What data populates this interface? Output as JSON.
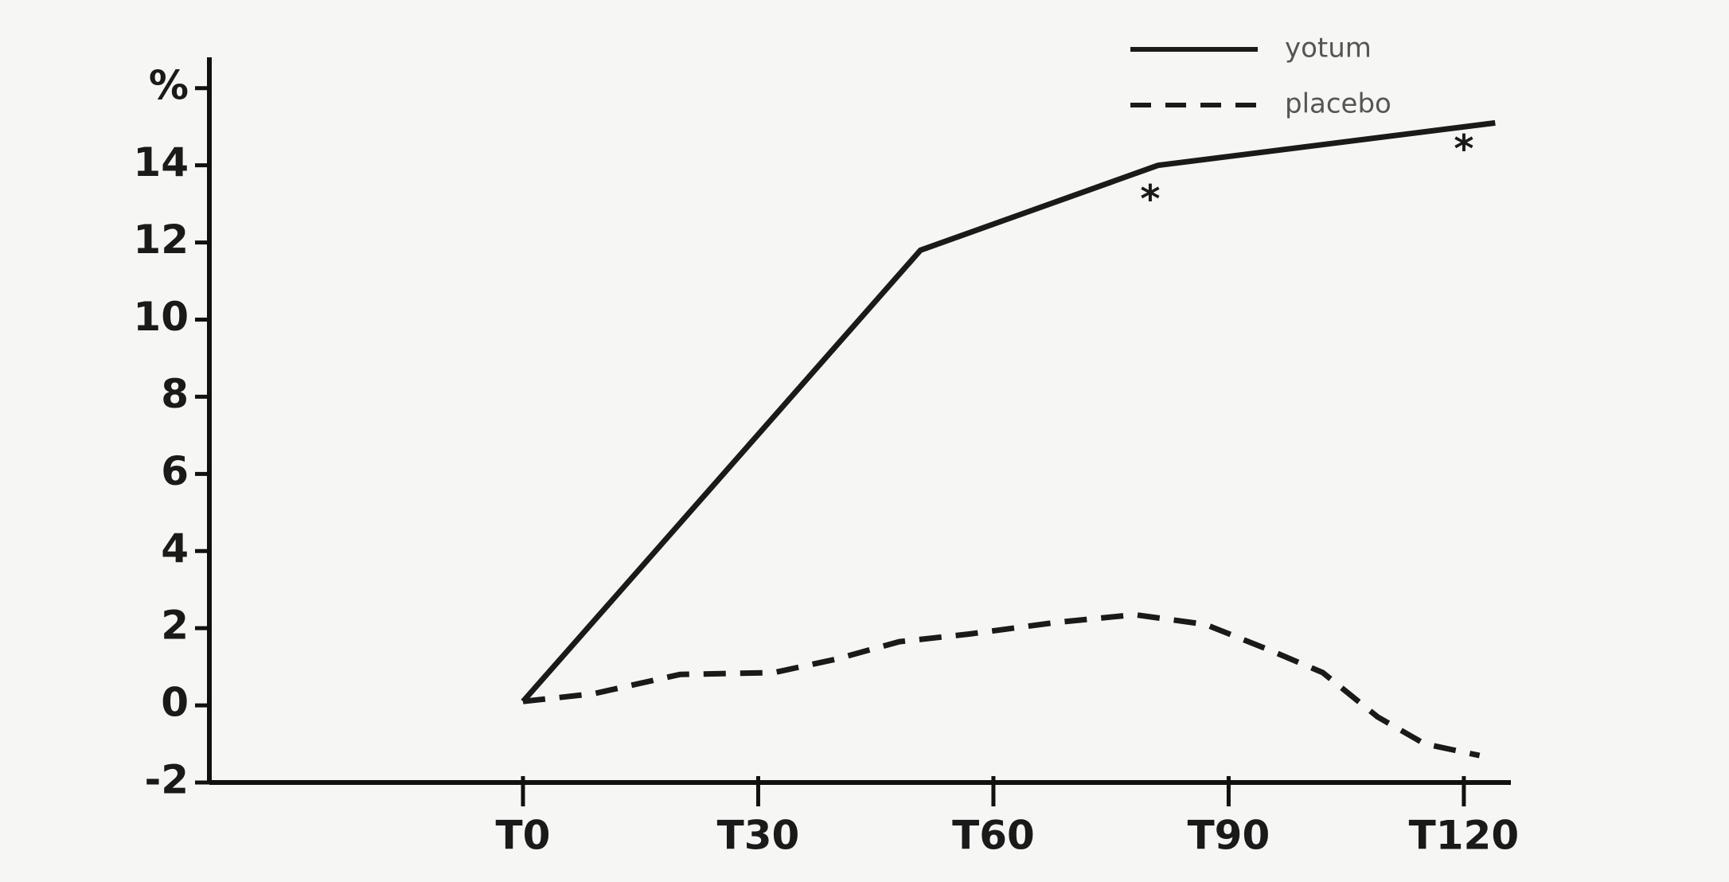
{
  "chart_data": {
    "type": "line",
    "x_label": null,
    "xlim": [
      -40,
      126
    ],
    "xticks": [
      {
        "value": 0,
        "label": "T0"
      },
      {
        "value": 30,
        "label": "T30"
      },
      {
        "value": 60,
        "label": "T60"
      },
      {
        "value": 90,
        "label": "T90"
      },
      {
        "value": 120,
        "label": "T120"
      }
    ],
    "ylim": [
      -2,
      16.8
    ],
    "yticks": [
      -2,
      0,
      2,
      4,
      6,
      8,
      10,
      12,
      14,
      {
        "value": 16,
        "label": "%"
      }
    ],
    "legend": "top-right",
    "series": [
      {
        "name": "yotum",
        "color": "#1a1a1a",
        "dash": "solid",
        "x": [
          0,
          50.7,
          81,
          124
        ],
        "values": [
          0.1,
          11.8,
          14,
          15.1
        ]
      },
      {
        "name": "placebo",
        "color": "#1a1a1a",
        "dash": "dashed",
        "x": [
          0,
          9,
          20,
          32,
          40,
          48,
          57,
          68,
          78,
          87,
          95,
          102,
          109,
          115,
          122
        ],
        "values": [
          0.1,
          0.3,
          0.8,
          0.85,
          1.2,
          1.65,
          1.85,
          2.15,
          2.35,
          2.1,
          1.45,
          0.85,
          -0.3,
          -1.0,
          -1.3
        ]
      }
    ],
    "annotations": [
      {
        "text": "*",
        "x": 80,
        "y": 13.3
      },
      {
        "text": "*",
        "x": 120,
        "y": 14.6
      }
    ]
  }
}
